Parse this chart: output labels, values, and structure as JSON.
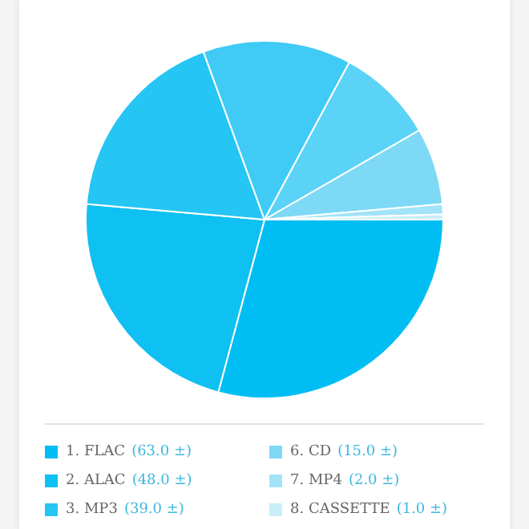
{
  "chart_data": {
    "type": "pie",
    "categories": [
      "1. FLAC",
      "2. ALAC",
      "3. MP3",
      null,
      null,
      "6. CD",
      "7. MP4",
      "8. CASSETTE"
    ],
    "values": [
      63,
      48,
      39,
      29,
      19,
      15,
      2,
      1
    ],
    "value_labels": [
      "(63.0 ±)",
      "(48.0 ±)",
      "(39.0 ±)",
      null,
      null,
      "(15.0 ±)",
      "(2.0 ±)",
      "(1.0 ±)"
    ],
    "colors": [
      "#00bef3",
      "#0fc0f2",
      "#25c5f4",
      "#3fcbf5",
      "#5ad3f7",
      "#7dd9f5",
      "#a2e3f7",
      "#c9eef9"
    ],
    "legend": "bottom"
  }
}
